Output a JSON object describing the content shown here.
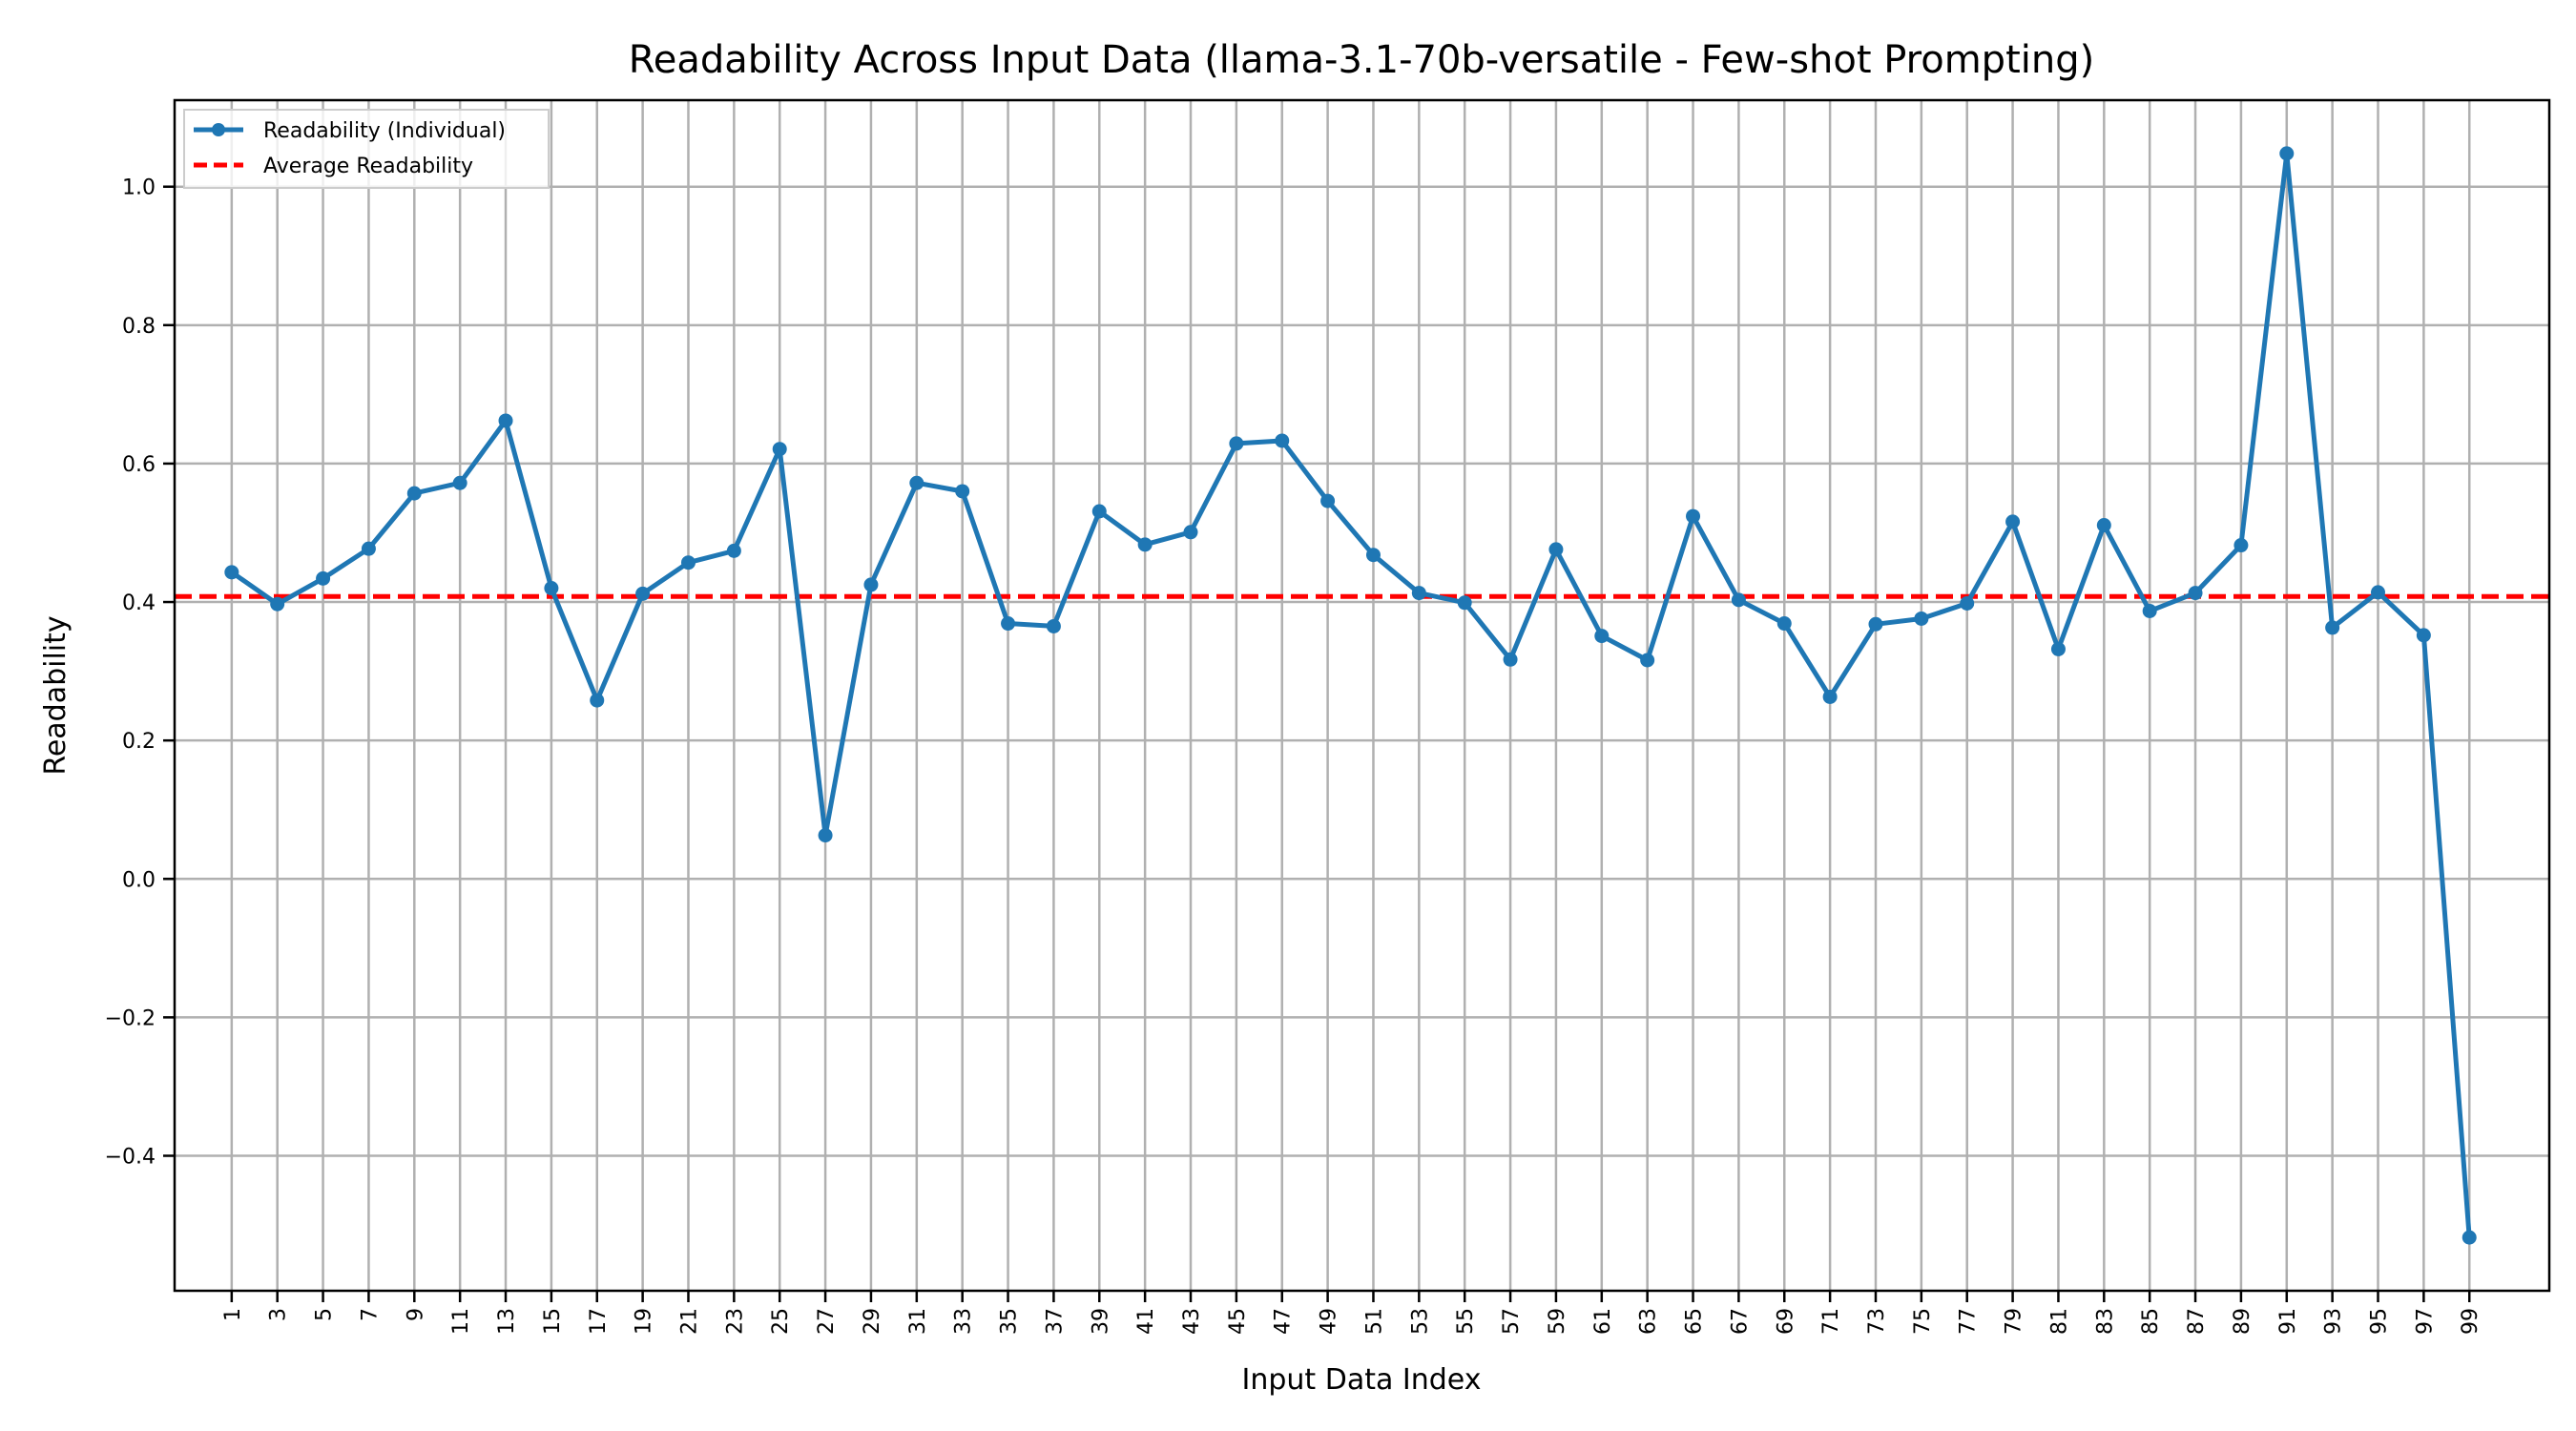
{
  "chart_data": {
    "type": "line",
    "title": "Readability Across Input Data (llama-3.1-70b-versatile - Few-shot Prompting)",
    "xlabel": "Input Data Index",
    "ylabel": "Readability",
    "xlim": [
      -1.5,
      102.5
    ],
    "ylim": [
      -0.595,
      1.125
    ],
    "x_ticks": [
      1,
      3,
      5,
      7,
      9,
      11,
      13,
      15,
      17,
      19,
      21,
      23,
      25,
      27,
      29,
      31,
      33,
      35,
      37,
      39,
      41,
      43,
      45,
      47,
      49,
      51,
      53,
      55,
      57,
      59,
      61,
      63,
      65,
      67,
      69,
      71,
      73,
      75,
      77,
      79,
      81,
      83,
      85,
      87,
      89,
      91,
      93,
      95,
      97,
      99
    ],
    "y_ticks": [
      -0.4,
      -0.2,
      0.0,
      0.2,
      0.4,
      0.6,
      0.8,
      1.0
    ],
    "y_tick_labels": [
      "−0.4",
      "−0.2",
      "0.0",
      "0.2",
      "0.4",
      "0.6",
      "0.8",
      "1.0"
    ],
    "grid": true,
    "legend_position": "top-left",
    "series": [
      {
        "name": "Readability (Individual)",
        "color": "#1f77b4",
        "style": "solid-with-markers",
        "x": [
          1,
          3,
          5,
          7,
          9,
          11,
          13,
          15,
          17,
          19,
          21,
          23,
          25,
          27,
          29,
          31,
          33,
          35,
          37,
          39,
          41,
          43,
          45,
          47,
          49,
          51,
          53,
          55,
          57,
          59,
          61,
          63,
          65,
          67,
          69,
          71,
          73,
          75,
          77,
          79,
          81,
          83,
          85,
          87,
          89,
          91,
          93,
          95,
          97,
          99
        ],
        "y": [
          0.443,
          0.397,
          0.434,
          0.477,
          0.557,
          0.572,
          0.662,
          0.42,
          0.258,
          0.412,
          0.457,
          0.474,
          0.621,
          0.063,
          0.425,
          0.572,
          0.56,
          0.369,
          0.365,
          0.531,
          0.483,
          0.501,
          0.629,
          0.633,
          0.546,
          0.468,
          0.413,
          0.399,
          0.317,
          0.476,
          0.351,
          0.316,
          0.524,
          0.403,
          0.369,
          0.263,
          0.368,
          0.376,
          0.398,
          0.516,
          0.332,
          0.511,
          0.387,
          0.413,
          0.482,
          1.048,
          0.363,
          0.414,
          0.352,
          -0.518
        ]
      },
      {
        "name": "Average Readability",
        "color": "#ff0000",
        "style": "dashed",
        "value": 0.408
      }
    ]
  }
}
